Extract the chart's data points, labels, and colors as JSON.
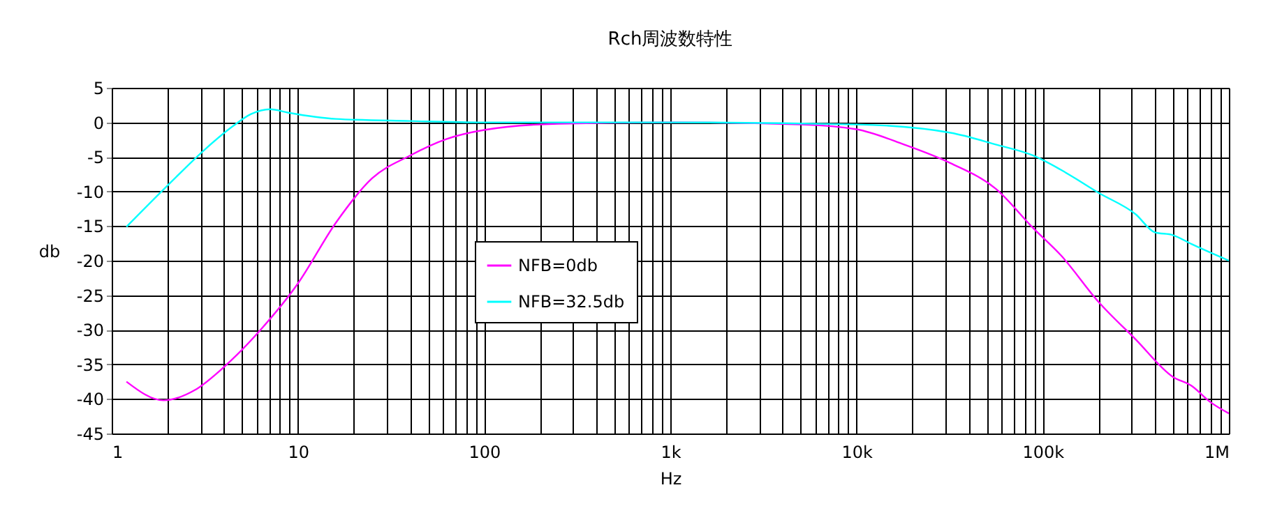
{
  "chart_data": {
    "type": "line",
    "title": "Rch周波数特性",
    "xlabel": "Hz",
    "ylabel": "db",
    "log": "x",
    "grid": true,
    "legend": "left",
    "marker": "none",
    "line_style": "solid",
    "xlim": [
      1,
      1000000
    ],
    "ylim": [
      -45,
      5
    ],
    "yticks": [
      -45,
      -40,
      -35,
      -30,
      -25,
      -20,
      -15,
      -10,
      -5,
      0,
      5
    ],
    "xticks": [
      1,
      {
        "value": 2,
        "label": null
      },
      {
        "value": 3,
        "label": null
      },
      {
        "value": 4,
        "label": null
      },
      {
        "value": 5,
        "label": null
      },
      {
        "value": 6,
        "label": null
      },
      {
        "value": 7,
        "label": null
      },
      {
        "value": 8,
        "label": null
      },
      {
        "value": 9,
        "label": null
      },
      10,
      {
        "value": 20,
        "label": null
      },
      {
        "value": 30,
        "label": null
      },
      {
        "value": 40,
        "label": null
      },
      {
        "value": 50,
        "label": null
      },
      {
        "value": 60,
        "label": null
      },
      {
        "value": 70,
        "label": null
      },
      {
        "value": 80,
        "label": null
      },
      {
        "value": 90,
        "label": null
      },
      100,
      {
        "value": 200,
        "label": null
      },
      {
        "value": 300,
        "label": null
      },
      {
        "value": 400,
        "label": null
      },
      {
        "value": 500,
        "label": null
      },
      {
        "value": 600,
        "label": null
      },
      {
        "value": 700,
        "label": null
      },
      {
        "value": 800,
        "label": null
      },
      {
        "value": 900,
        "label": null
      },
      {
        "value": 1000,
        "label": "1k"
      },
      {
        "value": 2000,
        "label": null
      },
      {
        "value": 3000,
        "label": null
      },
      {
        "value": 4000,
        "label": null
      },
      {
        "value": 5000,
        "label": null
      },
      {
        "value": 6000,
        "label": null
      },
      {
        "value": 7000,
        "label": null
      },
      {
        "value": 8000,
        "label": null
      },
      {
        "value": 9000,
        "label": null
      },
      {
        "value": 10000,
        "label": "10k"
      },
      {
        "value": 20000,
        "label": null
      },
      {
        "value": 30000,
        "label": null
      },
      {
        "value": 40000,
        "label": null
      },
      {
        "value": 50000,
        "label": null
      },
      {
        "value": 60000,
        "label": null
      },
      {
        "value": 70000,
        "label": null
      },
      {
        "value": 80000,
        "label": null
      },
      {
        "value": 90000,
        "label": null
      },
      {
        "value": 100000,
        "label": "100k"
      },
      {
        "value": 200000,
        "label": null
      },
      {
        "value": 300000,
        "label": null
      },
      {
        "value": 400000,
        "label": null
      },
      {
        "value": 500000,
        "label": null
      },
      {
        "value": 600000,
        "label": null
      },
      {
        "value": 700000,
        "label": null
      },
      {
        "value": 800000,
        "label": null
      },
      {
        "value": 900000,
        "label": null
      },
      {
        "value": 1000000,
        "label": "1M"
      }
    ],
    "series": [
      {
        "name": "NFB=0db",
        "color": "#ff00ff",
        "x": [
          1.2,
          1.9,
          2.8,
          4,
          6.3,
          10,
          16,
          25,
          40,
          63,
          100,
          250,
          1000,
          5000,
          10000,
          18000,
          32000,
          56000,
          89000,
          126000,
          200000,
          316000,
          500000,
          630000,
          790000,
          1000000
        ],
        "values": [
          -37.5,
          -40.2,
          -38.7,
          -35.4,
          -30,
          -23.3,
          -14.5,
          -8.1,
          -4.8,
          -2.4,
          -1.1,
          -0.2,
          0,
          -0.3,
          -1,
          -3.2,
          -5.9,
          -9.6,
          -15.3,
          -19.3,
          -26,
          -31.4,
          -36.8,
          -38.1,
          -40.4,
          -42.1
        ]
      },
      {
        "name": "NFB=32.5db",
        "color": "#00ffff",
        "x": [
          1.2,
          2,
          3.2,
          4.5,
          5.6,
          7.1,
          8.9,
          16,
          40,
          100,
          1000,
          10000,
          32000,
          56000,
          89000,
          126000,
          200000,
          316000,
          400000,
          500000,
          630000,
          1000000
        ],
        "values": [
          -15.1,
          -9.1,
          -3.8,
          -0.5,
          1.2,
          1.9,
          1.4,
          0.5,
          0.2,
          0,
          0,
          -0.3,
          -1.5,
          -3.2,
          -4.8,
          -6.9,
          -10.2,
          -13.3,
          -15.9,
          -16.3,
          -17.6,
          -20
        ]
      }
    ]
  }
}
